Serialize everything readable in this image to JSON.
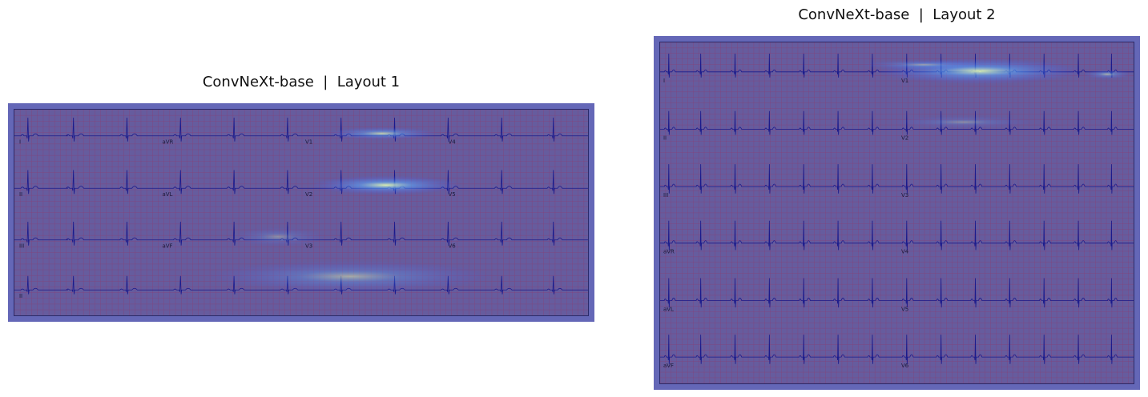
{
  "panels": [
    {
      "title": "ConvNeXt-base  |  Layout 1",
      "leads": [
        "I",
        "aVR",
        "V1",
        "V4",
        "II",
        "aVL",
        "V2",
        "V5",
        "III",
        "aVF",
        "V3",
        "V6",
        "II"
      ]
    },
    {
      "title": "ConvNeXt-base  |  Layout 2",
      "leads": [
        "I",
        "V1",
        "II",
        "V2",
        "III",
        "V3",
        "aVR",
        "V4",
        "aVL",
        "V5",
        "aVF",
        "V6"
      ]
    }
  ],
  "colors": {
    "frame": "#6467b7",
    "paper": "#665c9e",
    "grid": "#8a3f73",
    "trace": "#1a1a8c",
    "heat_low": "#3c5cff",
    "heat_high": "#e8ffb0"
  }
}
